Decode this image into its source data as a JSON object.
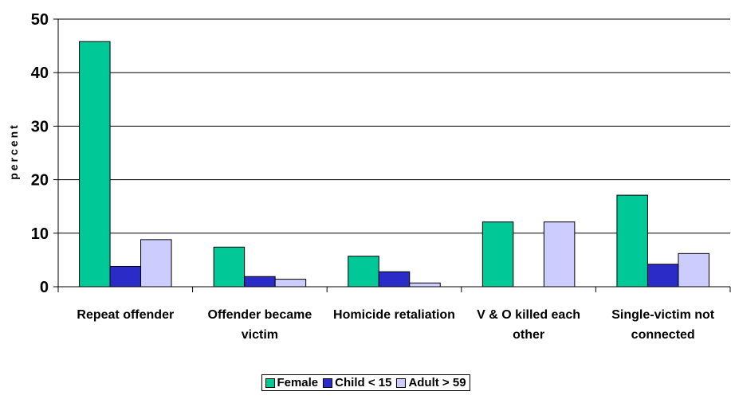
{
  "chart_data": {
    "type": "bar",
    "y_label": "percent",
    "categories": [
      "Repeat offender",
      "Offender became victim",
      "Homicide retaliation",
      "V & O killed each other",
      "Single-victim not connected"
    ],
    "series": [
      {
        "name": "Female",
        "color": "#00c896",
        "values": [
          45.8,
          7.4,
          5.7,
          12.1,
          17.1
        ]
      },
      {
        "name": "Child < 15",
        "color": "#2b2bc8",
        "values": [
          3.8,
          1.9,
          2.8,
          0,
          4.2
        ]
      },
      {
        "name": "Adult > 59",
        "color": "#ccccff",
        "values": [
          8.8,
          1.4,
          0.7,
          12.1,
          6.2
        ]
      }
    ],
    "ylim": [
      0,
      50
    ],
    "yticks": [
      0,
      10,
      20,
      30,
      40,
      50
    ],
    "grid": true,
    "legend": "bottom"
  }
}
